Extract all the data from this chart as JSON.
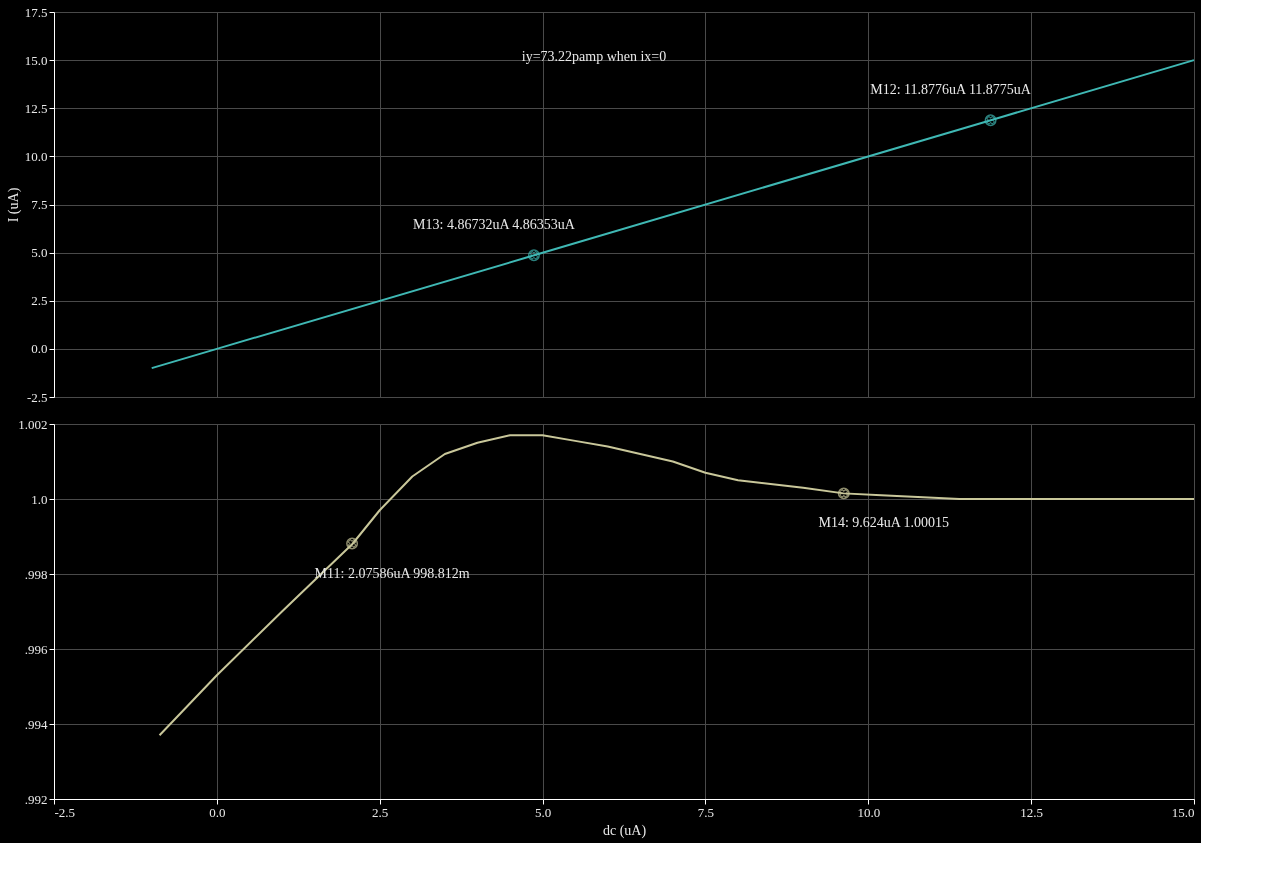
{
  "chart_data": [
    {
      "type": "line",
      "ylabel": "I (uA)",
      "xlim": [
        -2.5,
        15
      ],
      "ylim": [
        -2.5,
        17.5
      ],
      "tick_labels": "y",
      "grid": true,
      "xticks": [
        -2.5,
        0,
        2.5,
        5,
        7.5,
        10,
        12.5,
        15
      ],
      "yticks": [
        -2.5,
        {
          "value": 0,
          "label": "0.0"
        },
        2.5,
        {
          "value": 5,
          "label": "5.0"
        },
        7.5,
        {
          "value": 10,
          "label": "10.0"
        },
        12.5,
        {
          "value": 15,
          "label": "15.0"
        },
        17.5
      ],
      "series": [
        {
          "color": "#3fb8b4",
          "x": [
            -1,
            0,
            4.87,
            11.88,
            15
          ],
          "values": [
            -1,
            0,
            4.86,
            11.88,
            15
          ]
        }
      ],
      "annotations": [
        "iy=73.22pamp when ix=0",
        {
          "text": "M13: 4.86732uA 4.86353uA",
          "x": 4.86732,
          "y": 4.86353
        },
        {
          "text": "M12: 11.8776uA 11.8775uA",
          "x": 11.8776,
          "y": 11.8775
        }
      ]
    },
    {
      "type": "line",
      "xlabel": "dc (uA)",
      "xlim": [
        -2.5,
        15
      ],
      "ylim": [
        0.992,
        1.002
      ],
      "grid": true,
      "xticks": [
        -2.5,
        {
          "value": 0,
          "label": "0.0"
        },
        2.5,
        {
          "value": 5,
          "label": "5.0"
        },
        7.5,
        {
          "value": 10,
          "label": "10.0"
        },
        12.5,
        {
          "value": 15,
          "label": "15.0"
        }
      ],
      "yticks": [
        {
          "value": 0.992,
          "label": ".992"
        },
        {
          "value": 0.994,
          "label": ".994"
        },
        {
          "value": 0.996,
          "label": ".996"
        },
        {
          "value": 0.998,
          "label": ".998"
        },
        {
          "value": 1.0,
          "label": "1.0"
        },
        1.002
      ],
      "series": [
        {
          "color": "#c9c79a",
          "x": [
            -0.88,
            0,
            1,
            2.08,
            2.5,
            3,
            3.5,
            4,
            4.5,
            5,
            5.5,
            6,
            6.5,
            7,
            7.5,
            8,
            8.5,
            9,
            9.62,
            10.2,
            11.4,
            15
          ],
          "values": [
            0.9937,
            0.9953,
            0.997,
            0.9988,
            0.9997,
            1.0006,
            1.0012,
            1.0015,
            1.0017,
            1.0017,
            1.00155,
            1.0014,
            1.0012,
            1.001,
            1.0007,
            1.0005,
            1.0004,
            1.0003,
            1.00015,
            1.0001,
            1.0,
            1.0
          ]
        }
      ],
      "annotations": [
        {
          "text": "M11: 2.07586uA 998.812m",
          "x": 2.07586,
          "y": 0.998812
        },
        {
          "text": "M14: 9.624uA 1.00015",
          "x": 9.624,
          "y": 1.00015
        }
      ]
    }
  ]
}
